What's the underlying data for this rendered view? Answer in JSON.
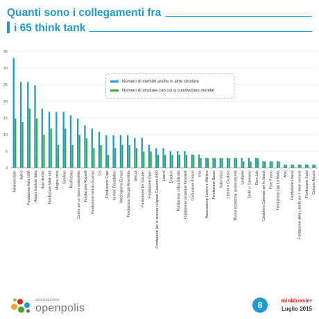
{
  "header": {
    "title_line1": "Quanti sono i collegamenti fra",
    "title_line2": "i 65 think tank"
  },
  "legend": {
    "items": [
      {
        "label": "Numero di membri anche in altre strutture",
        "color": "#1f9ad6"
      },
      {
        "label": "Numero di strutture con cui si condividono membri",
        "color": "#3aaa35"
      }
    ]
  },
  "footer": {
    "logo_small": "associazione",
    "logo_big": "openpolis",
    "page_number": "8",
    "brand": "minidossier",
    "date": "Luglio 2015"
  },
  "colors": {
    "primary": "#1f9ad6",
    "secondary": "#3aaa35",
    "accent": "#e2211c"
  },
  "chart_data": {
    "type": "bar",
    "ylim": [
      0,
      35
    ],
    "yticks": [
      0,
      5,
      10,
      15,
      20,
      25,
      30,
      35
    ],
    "grid": true,
    "legend_position": "top-center",
    "categories": [
      "Italianieuropei",
      "Astrid",
      "Fondazione Italia USA",
      "Aspen Institute Italia",
      "Italia decide",
      "Fondazione Nilde Iotti",
      "Magna carta",
      "Symbola",
      "ResPublica",
      "Centro per un futuro sostenibile",
      "Fondazione Rosselli",
      "Fondazione Istituto Gramsci",
      "Cis",
      "Fondazione Craxi",
      "Human Foundation",
      "Mezzogiorno Europa",
      "Fondazione Giorgio Amendola",
      "Glocus",
      "Fondazione De Gasperi",
      "Fondazione Open",
      "Fondazione per le scienze religiose Giovanni XXIII",
      "Liberal",
      "Ecodem",
      "Fondazione critica liberale",
      "Fondazione Giuseppe Tarantelli",
      "Costruiamo il futuro",
      "Icsa",
      "Associazione Lavoro e Welfare",
      "Fondazione Basso",
      "Italia futura",
      "Libertà e Giustizia",
      "Nuova economia, nuova società",
      "Unitàvde",
      "Diritti in Cammino",
      "iDem.Lab",
      "Cristoforo Colombo per le libertà",
      "Fare Futuro",
      "Fondazione Ugo La Malfa",
      "Anel",
      "Fondazione Liberal",
      "Fondazione della Libertà per il bene comune",
      "Fondazione Sudd",
      "Cercare Ancora"
    ],
    "series": [
      {
        "name": "Numero di membri anche in altre strutture",
        "values": [
          33,
          25.8,
          25.8,
          24.8,
          17.8,
          16.8,
          16.8,
          16.8,
          15.8,
          14.8,
          12.8,
          11.8,
          10.8,
          9.8,
          9.8,
          9.8,
          9.8,
          9,
          9,
          6.9,
          5.9,
          5.9,
          5,
          5,
          5,
          4,
          4,
          3,
          3,
          3,
          3,
          3,
          3,
          3,
          3,
          2,
          2,
          2,
          1,
          1,
          1,
          1,
          1
        ]
      },
      {
        "name": "Numero di strutture con cui si condividono membri",
        "values": [
          14.8,
          13.8,
          17.8,
          14.8,
          9.9,
          11.8,
          6.9,
          11.8,
          6.9,
          9.9,
          8.9,
          5.9,
          6.9,
          3.9,
          5.9,
          6.9,
          6.9,
          5.9,
          4.9,
          4.9,
          3.9,
          3.9,
          3.9,
          3.9,
          3.9,
          3.9,
          2.9,
          2.9,
          2.9,
          2.9,
          2.9,
          2.9,
          1.9,
          1.9,
          2.9,
          1.9,
          1.9,
          1.9,
          0.9,
          0.9,
          0.9,
          0.9,
          0.9
        ]
      }
    ]
  }
}
